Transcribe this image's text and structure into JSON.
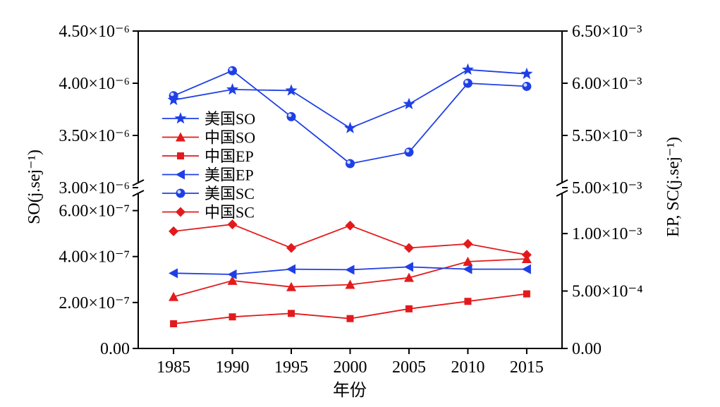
{
  "chart_data": {
    "type": "line",
    "title": "",
    "xlabel": "年份",
    "left_ylabel": "SO(j.sej⁻¹)",
    "right_ylabel": "EP, SC(j.sej⁻¹)",
    "x": [
      1985,
      1990,
      1995,
      2000,
      2005,
      2010,
      2015
    ],
    "x_ticks": [
      "1985",
      "1990",
      "1995",
      "2000",
      "2005",
      "2010",
      "2015"
    ],
    "left_axis": {
      "broken": true,
      "upper_range": [
        3e-06,
        4.5e-06
      ],
      "lower_range": [
        0,
        7e-07
      ],
      "upper_ticks": [
        "3.00×10⁻⁶",
        "3.50×10⁻⁶",
        "4.00×10⁻⁶",
        "4.50×10⁻⁶"
      ],
      "lower_ticks": [
        "0.00",
        "2.00×10⁻⁷",
        "4.00×10⁻⁷",
        "6.00×10⁻⁷"
      ]
    },
    "right_axis": {
      "broken": true,
      "upper_range": [
        0.005,
        0.0065
      ],
      "lower_range": [
        0,
        0.0014
      ],
      "upper_ticks": [
        "5.00×10⁻³",
        "5.50×10⁻³",
        "6.00×10⁻³",
        "6.50×10⁻³"
      ],
      "lower_ticks": [
        "0.00",
        "5.00×10⁻⁴",
        "1.00×10⁻³"
      ]
    },
    "legend_position": "left",
    "series": [
      {
        "name": "美国SO",
        "axis": "left",
        "color": "#1f3fe6",
        "marker": "star",
        "values": [
          3.84e-06,
          3.94e-06,
          3.93e-06,
          3.57e-06,
          3.8e-06,
          4.13e-06,
          4.09e-06
        ]
      },
      {
        "name": "中国SO",
        "axis": "left",
        "color": "#e31a1c",
        "marker": "triangle-up",
        "values": [
          2.25e-07,
          2.95e-07,
          2.68e-07,
          2.78e-07,
          3.08e-07,
          3.78e-07,
          3.9e-07
        ]
      },
      {
        "name": "中国EP",
        "axis": "right",
        "color": "#e31a1c",
        "marker": "square",
        "values": [
          0.000215,
          0.000275,
          0.000305,
          0.00026,
          0.000345,
          0.00041,
          0.000475
        ]
      },
      {
        "name": "美国EP",
        "axis": "right",
        "color": "#1f3fe6",
        "marker": "triangle-left",
        "values": [
          0.000655,
          0.000645,
          0.00069,
          0.000685,
          0.00071,
          0.00069,
          0.00069
        ]
      },
      {
        "name": "美国SC",
        "axis": "right",
        "color": "#1f3fe6",
        "marker": "circle",
        "values": [
          0.00588,
          0.00612,
          0.00568,
          0.00523,
          0.00534,
          0.006,
          0.00597
        ]
      },
      {
        "name": "中国SC",
        "axis": "right",
        "color": "#e31a1c",
        "marker": "diamond",
        "values": [
          0.00102,
          0.00108,
          0.000875,
          0.00107,
          0.000875,
          0.00091,
          0.000815
        ]
      }
    ]
  }
}
